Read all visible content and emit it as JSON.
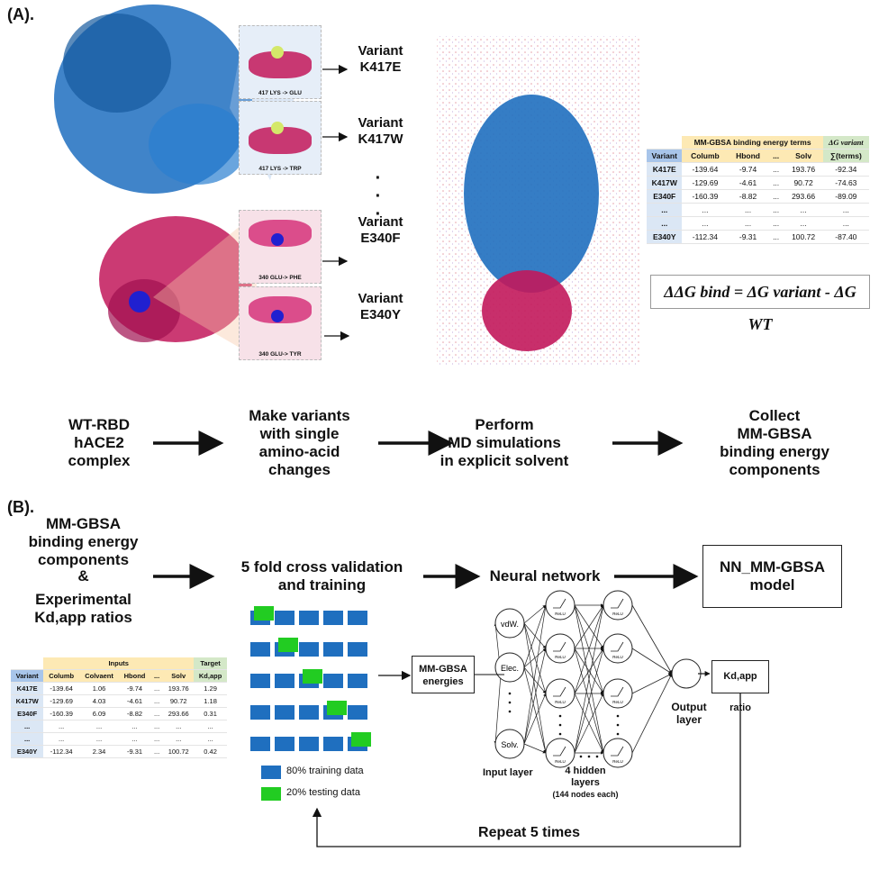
{
  "panel_a": {
    "label": "(A).",
    "insets": [
      {
        "caption": "417 LYS -> GLU",
        "variant": "Variant",
        "code": "K417E"
      },
      {
        "caption": "417 LYS -> TRP",
        "variant": "Variant",
        "code": "K417W"
      },
      {
        "caption": "340 GLU-> PHE",
        "variant": "Variant",
        "code": "E340F"
      },
      {
        "caption": "340 GLU-> TYR",
        "variant": "Variant",
        "code": "E340Y"
      }
    ],
    "ellipsis_dot": "·",
    "table": {
      "group_header": "MM-GBSA binding energy terms",
      "target_header": "ΔG variant",
      "columns": [
        "Variant",
        "Columb",
        "Hbond",
        "...",
        "Solv",
        "∑(terms)"
      ],
      "rows": [
        [
          "K417E",
          "-139.64",
          "-9.74",
          "...",
          "193.76",
          "-92.34"
        ],
        [
          "K417W",
          "-129.69",
          "-4.61",
          "...",
          "90.72",
          "-74.63"
        ],
        [
          "E340F",
          "-160.39",
          "-8.82",
          "...",
          "293.66",
          "-89.09"
        ],
        [
          "...",
          "...",
          "...",
          "...",
          "...",
          "..."
        ],
        [
          "...",
          "...",
          "...",
          "...",
          "...",
          "..."
        ],
        [
          "E340Y",
          "-112.34",
          "-9.31",
          "...",
          "100.72",
          "-87.40"
        ]
      ]
    },
    "equation": "ΔΔG bind = ΔG variant - ΔG WT",
    "steps": [
      "WT-RBD\nhACE2\ncomplex",
      "Make variants\nwith single\namino-acid\nchanges",
      "Perform\nMD simulations\nin explicit solvent",
      "Collect\nMM-GBSA\nbinding energy\ncomponents"
    ]
  },
  "panel_b": {
    "label": "(B).",
    "inputs_text": "MM-GBSA\nbinding energy\ncomponents",
    "ampersand": "&",
    "experimental_text": "Experimental\nKd,app ratios",
    "cv_title": "5 fold cross validation\nand training",
    "nn_title": "Neural network",
    "model_box": "NN_MM-GBSA\nmodel",
    "table": {
      "inputs_header": "Inputs",
      "target_header": "Target",
      "columns": [
        "Variant",
        "Columb",
        "Colvaent",
        "Hbond",
        "...",
        "Solv",
        "Kd,app"
      ],
      "rows": [
        [
          "K417E",
          "-139.64",
          "1.06",
          "-9.74",
          "...",
          "193.76",
          "1.29"
        ],
        [
          "K417W",
          "-129.69",
          "4.03",
          "-4.61",
          "...",
          "90.72",
          "1.18"
        ],
        [
          "E340F",
          "-160.39",
          "6.09",
          "-8.82",
          "...",
          "293.66",
          "0.31"
        ],
        [
          "...",
          "...",
          "...",
          "...",
          "...",
          "...",
          "..."
        ],
        [
          "...",
          "...",
          "...",
          "...",
          "...",
          "...",
          "..."
        ],
        [
          "E340Y",
          "-112.34",
          "2.34",
          "-9.31",
          "...",
          "100.72",
          "0.42"
        ]
      ]
    },
    "legend": [
      {
        "label": "80% training data",
        "color": "#1f6fbf"
      },
      {
        "label": "20% testing data",
        "color": "#22cc22"
      }
    ],
    "energies_box": "MM-GBSA\nenergies",
    "input_nodes": [
      "vdW.",
      "Elec.",
      "Solv."
    ],
    "relu_label": "ReLU",
    "input_layer_label": "Input layer",
    "hidden_label": "4 hidden\nlayers",
    "hidden_sub": "(144 nodes each)",
    "output_label": "Output\nlayer",
    "output_box": "Kd,app ratio",
    "repeat_label": "Repeat 5 times"
  },
  "colors": {
    "protein_blue": "#1f6fbf",
    "protein_magenta": "#c2185b",
    "test_green": "#22cc22"
  }
}
